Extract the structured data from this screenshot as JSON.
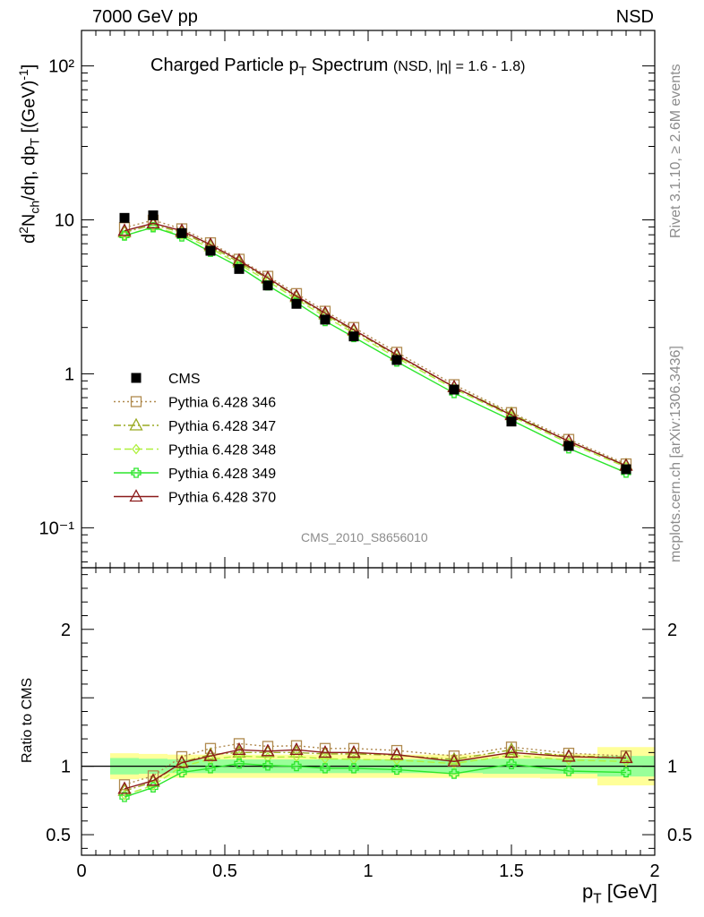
{
  "header": {
    "left": "7000 GeV pp",
    "right": "NSD"
  },
  "side_texts": {
    "rivet": "Rivet 3.1.10, ≥ 2.6M events",
    "mcplots": "mcplots.cern.ch [arXiv:1306.3436]"
  },
  "title": {
    "main_pre": "Charged Particle p",
    "main_sub": "T",
    "main_post": " Spectrum",
    "qualifier": "(NSD, |η| = 1.6 - 1.8)"
  },
  "watermark": "CMS_2010_S8656010",
  "ratio_ylabel": "Ratio to CMS",
  "colors": {
    "cms": "#000000",
    "p346": "#b08a4f",
    "p347": "#9aaa22",
    "p348": "#aef03c",
    "p349": "#2ce62c",
    "p370": "#8b1a1a",
    "band_inner": "#99ff99",
    "band_outer": "#ffff99"
  },
  "chart_data": [
    {
      "type": "line",
      "log_y": true,
      "xlim": [
        0,
        2
      ],
      "ylim": [
        0.055,
        170
      ],
      "ylabel": "d²N_ch/dη, dp_T [(GeV)⁻¹]",
      "ytick_labels": [
        "10⁻¹",
        "1",
        "10",
        "10²"
      ],
      "x": [
        0.15,
        0.25,
        0.35,
        0.45,
        0.55,
        0.65,
        0.75,
        0.85,
        0.95,
        1.1,
        1.3,
        1.5,
        1.7,
        1.9
      ],
      "legend": [
        "CMS",
        "Pythia 6.428 346",
        "Pythia 6.428 347",
        "Pythia 6.428 348",
        "Pythia 6.428 349",
        "Pythia 6.428 370"
      ],
      "series": [
        {
          "name": "CMS",
          "values": [
            10.3,
            10.7,
            8.2,
            6.3,
            4.8,
            3.75,
            2.85,
            2.25,
            1.75,
            1.23,
            0.79,
            0.49,
            0.34,
            0.24
          ]
        },
        {
          "name": "Pythia 6.428 346",
          "values": [
            8.9,
            9.95,
            8.75,
            7.1,
            5.55,
            4.3,
            3.32,
            2.55,
            2.0,
            1.38,
            0.85,
            0.56,
            0.375,
            0.26
          ]
        },
        {
          "name": "Pythia 6.428 347",
          "values": [
            8.3,
            9.3,
            8.3,
            6.75,
            5.3,
            4.15,
            3.15,
            2.43,
            1.9,
            1.31,
            0.82,
            0.55,
            0.365,
            0.255
          ]
        },
        {
          "name": "Pythia 6.428 348",
          "values": [
            7.9,
            9.0,
            8.0,
            6.55,
            5.15,
            4.0,
            3.05,
            2.35,
            1.84,
            1.27,
            0.8,
            0.53,
            0.355,
            0.248
          ]
        },
        {
          "name": "Pythia 6.428 349",
          "values": [
            7.9,
            8.95,
            7.8,
            6.2,
            4.95,
            3.75,
            2.9,
            2.2,
            1.73,
            1.2,
            0.75,
            0.5,
            0.328,
            0.228
          ]
        },
        {
          "name": "Pythia 6.428 370",
          "values": [
            8.5,
            9.5,
            8.5,
            6.9,
            5.45,
            4.2,
            3.2,
            2.48,
            1.93,
            1.33,
            0.82,
            0.54,
            0.365,
            0.253
          ]
        }
      ]
    },
    {
      "type": "line",
      "xlim": [
        0,
        2
      ],
      "ylim": [
        0.35,
        2.45
      ],
      "xlabel": "p_T [GeV]",
      "ylabel": "Ratio to CMS",
      "xtick_labels": [
        "0",
        "0.5",
        "1",
        "1.5",
        "2"
      ],
      "ytick_labels": [
        "0.5",
        "1",
        "2"
      ],
      "x": [
        0.15,
        0.25,
        0.35,
        0.45,
        0.55,
        0.65,
        0.75,
        0.85,
        0.95,
        1.1,
        1.3,
        1.5,
        1.7,
        1.9
      ],
      "bands": {
        "edges": [
          0.1,
          0.2,
          0.3,
          0.4,
          0.5,
          0.6,
          0.7,
          0.8,
          0.9,
          1.0,
          1.2,
          1.4,
          1.6,
          1.8,
          2.0
        ],
        "inner": [
          0.06,
          0.055,
          0.05,
          0.05,
          0.05,
          0.05,
          0.05,
          0.05,
          0.05,
          0.05,
          0.05,
          0.055,
          0.055,
          0.075
        ],
        "outer": [
          0.095,
          0.09,
          0.085,
          0.085,
          0.085,
          0.085,
          0.085,
          0.085,
          0.085,
          0.085,
          0.085,
          0.085,
          0.09,
          0.14
        ]
      },
      "series": [
        {
          "name": "Pythia 6.428 346",
          "values": [
            0.865,
            0.93,
            1.07,
            1.13,
            1.165,
            1.145,
            1.15,
            1.13,
            1.13,
            1.115,
            1.075,
            1.14,
            1.095,
            1.075
          ]
        },
        {
          "name": "Pythia 6.428 347",
          "values": [
            0.82,
            0.885,
            1.03,
            1.085,
            1.1,
            1.1,
            1.1,
            1.09,
            1.09,
            1.08,
            1.05,
            1.12,
            1.075,
            1.065
          ]
        },
        {
          "name": "Pythia 6.428 348",
          "values": [
            0.79,
            0.86,
            1.0,
            1.05,
            1.075,
            1.065,
            1.07,
            1.055,
            1.05,
            1.045,
            1.02,
            1.08,
            1.045,
            1.035
          ]
        },
        {
          "name": "Pythia 6.428 349",
          "values": [
            0.775,
            0.845,
            0.955,
            0.985,
            1.02,
            1.005,
            1.0,
            0.985,
            0.985,
            0.975,
            0.945,
            1.015,
            0.965,
            0.955
          ]
        },
        {
          "name": "Pythia 6.428 370",
          "values": [
            0.835,
            0.895,
            1.025,
            1.075,
            1.12,
            1.11,
            1.12,
            1.1,
            1.1,
            1.085,
            1.035,
            1.1,
            1.07,
            1.06
          ]
        }
      ]
    }
  ]
}
